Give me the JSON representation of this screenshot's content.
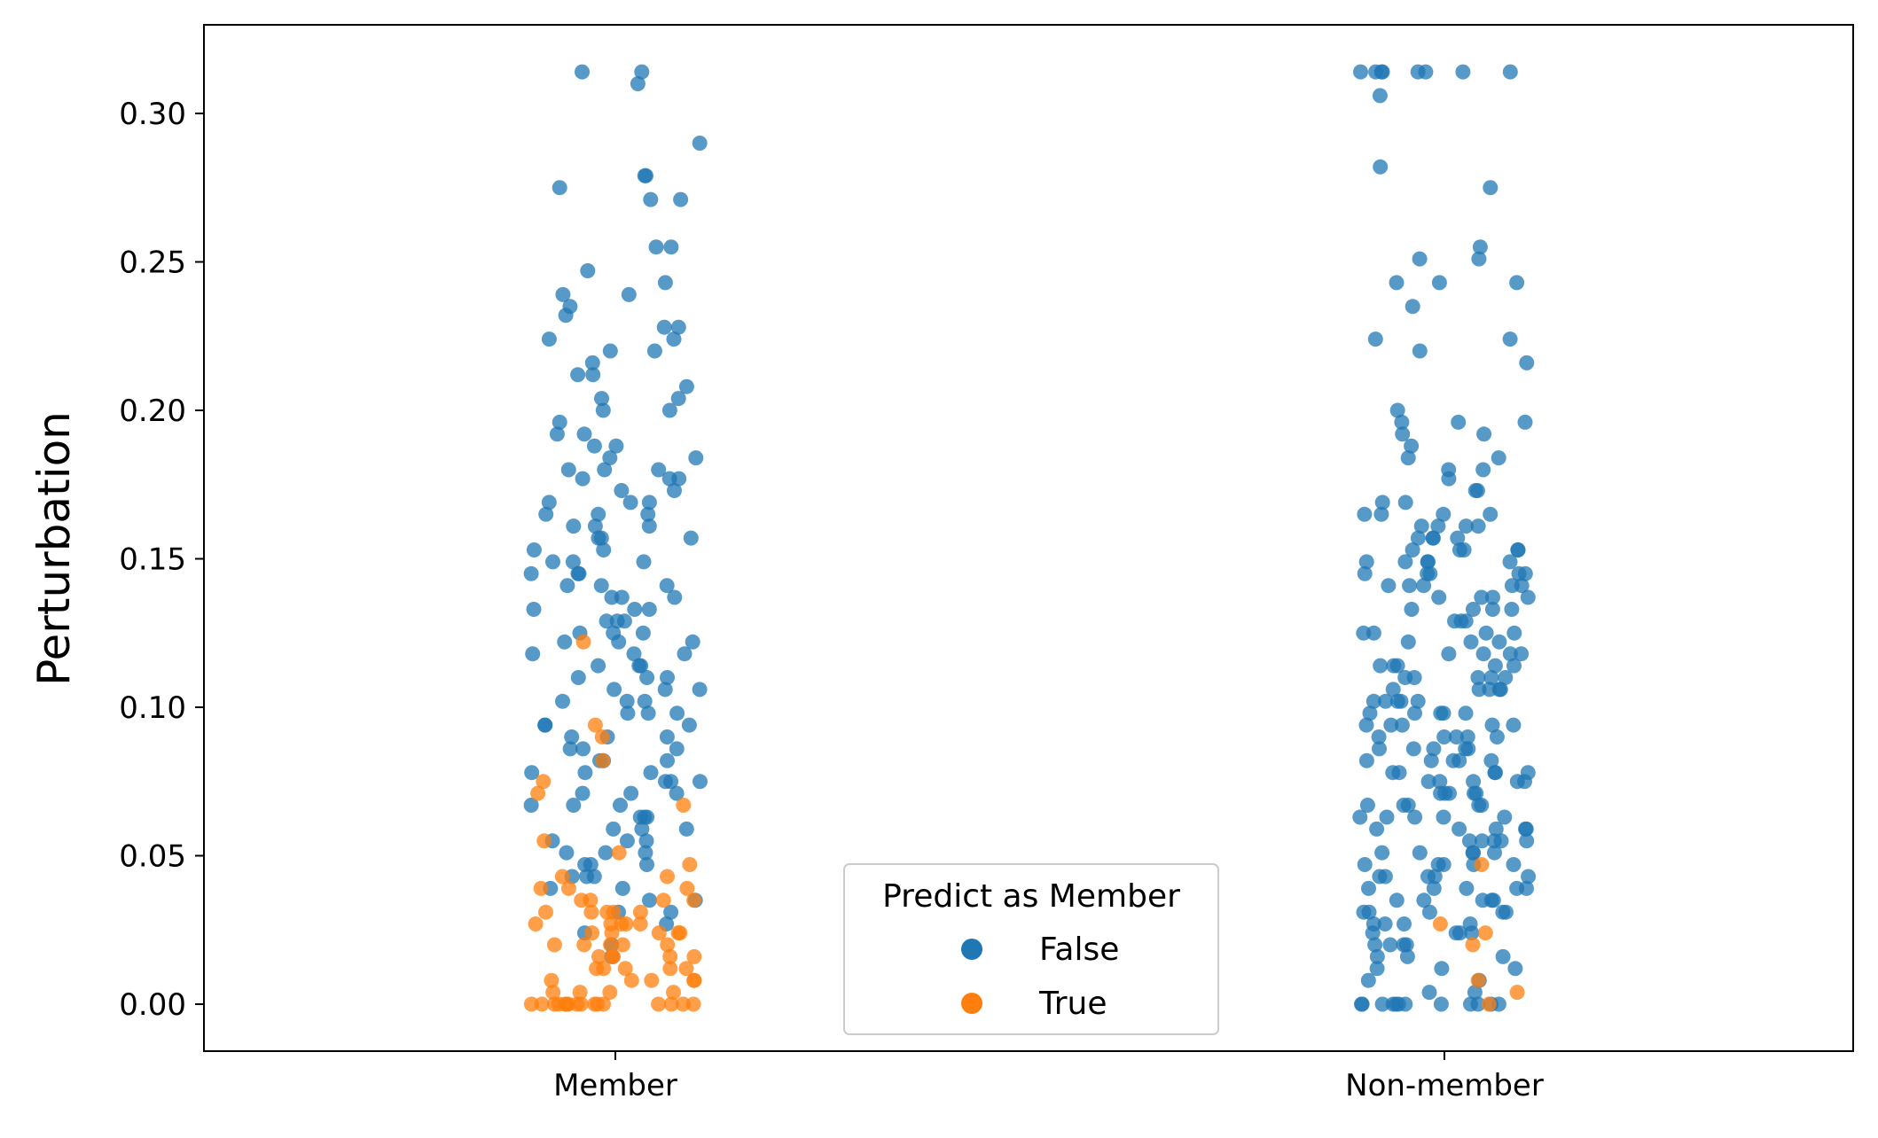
{
  "chart_data": {
    "type": "scatter",
    "subtype": "strip",
    "title": "",
    "xlabel": "",
    "ylabel": "Perturbation",
    "categories": [
      "Member",
      "Non-member"
    ],
    "ylim": [
      -0.016,
      0.33
    ],
    "yticks": [
      0.0,
      0.05,
      0.1,
      0.15,
      0.2,
      0.25,
      0.3
    ],
    "ytick_labels": [
      "0.00",
      "0.05",
      "0.10",
      "0.15",
      "0.20",
      "0.25",
      "0.30"
    ],
    "grid": false,
    "legend": {
      "title": "Predict as Member",
      "placement": "lower-center",
      "entries": [
        {
          "label": "False",
          "color": "#1f77b4"
        },
        {
          "label": "True",
          "color": "#ff7f0e"
        }
      ]
    },
    "series": [
      {
        "name": "False",
        "color": "#1f77b4",
        "points": {
          "Member": [
            0.314,
            0.314,
            0.31,
            0.29,
            0.279,
            0.279,
            0.275,
            0.271,
            0.271,
            0.255,
            0.255,
            0.247,
            0.243,
            0.239,
            0.239,
            0.235,
            0.232,
            0.228,
            0.228,
            0.224,
            0.224,
            0.22,
            0.22,
            0.216,
            0.212,
            0.212,
            0.208,
            0.204,
            0.204,
            0.2,
            0.2,
            0.196,
            0.192,
            0.192,
            0.188,
            0.188,
            0.184,
            0.184,
            0.18,
            0.18,
            0.18,
            0.177,
            0.177,
            0.177,
            0.173,
            0.173,
            0.169,
            0.169,
            0.169,
            0.165,
            0.165,
            0.165,
            0.161,
            0.161,
            0.161,
            0.157,
            0.157,
            0.157,
            0.153,
            0.153,
            0.149,
            0.149,
            0.149,
            0.145,
            0.145,
            0.145,
            0.141,
            0.141,
            0.141,
            0.137,
            0.137,
            0.137,
            0.133,
            0.133,
            0.133,
            0.129,
            0.129,
            0.129,
            0.125,
            0.125,
            0.125,
            0.122,
            0.122,
            0.122,
            0.118,
            0.118,
            0.118,
            0.114,
            0.114,
            0.114,
            0.11,
            0.11,
            0.11,
            0.106,
            0.106,
            0.106,
            0.102,
            0.102,
            0.102,
            0.098,
            0.098,
            0.098,
            0.094,
            0.094,
            0.094,
            0.09,
            0.09,
            0.09,
            0.086,
            0.086,
            0.086,
            0.082,
            0.082,
            0.082,
            0.078,
            0.078,
            0.078,
            0.075,
            0.075,
            0.075,
            0.071,
            0.071,
            0.071,
            0.067,
            0.067,
            0.067,
            0.063,
            0.063,
            0.063,
            0.059,
            0.059,
            0.059,
            0.055,
            0.055,
            0.055,
            0.051,
            0.051,
            0.051,
            0.047,
            0.047,
            0.047,
            0.043,
            0.043,
            0.043,
            0.039,
            0.039,
            0.035,
            0.035,
            0.031,
            0.031,
            0.027,
            0.024,
            0.02,
            0.016
          ],
          "Non-member": [
            0.314,
            0.314,
            0.314,
            0.314,
            0.314,
            0.314,
            0.314,
            0.314,
            0.306,
            0.282,
            0.275,
            0.255,
            0.251,
            0.251,
            0.243,
            0.243,
            0.243,
            0.235,
            0.224,
            0.224,
            0.22,
            0.216,
            0.2,
            0.196,
            0.196,
            0.196,
            0.192,
            0.192,
            0.188,
            0.184,
            0.184,
            0.18,
            0.18,
            0.177,
            0.173,
            0.173,
            0.169,
            0.169,
            0.165,
            0.165,
            0.165,
            0.165,
            0.161,
            0.161,
            0.161,
            0.161,
            0.157,
            0.157,
            0.157,
            0.157,
            0.153,
            0.153,
            0.153,
            0.153,
            0.153,
            0.149,
            0.149,
            0.149,
            0.149,
            0.149,
            0.145,
            0.145,
            0.145,
            0.145,
            0.145,
            0.141,
            0.141,
            0.141,
            0.141,
            0.141,
            0.137,
            0.137,
            0.137,
            0.137,
            0.133,
            0.133,
            0.133,
            0.133,
            0.129,
            0.129,
            0.129,
            0.125,
            0.125,
            0.125,
            0.125,
            0.122,
            0.122,
            0.122,
            0.118,
            0.118,
            0.118,
            0.118,
            0.114,
            0.114,
            0.114,
            0.114,
            0.114,
            0.11,
            0.11,
            0.11,
            0.11,
            0.11,
            0.106,
            0.106,
            0.106,
            0.106,
            0.106,
            0.102,
            0.102,
            0.102,
            0.102,
            0.102,
            0.098,
            0.098,
            0.098,
            0.098,
            0.098,
            0.094,
            0.094,
            0.094,
            0.094,
            0.094,
            0.09,
            0.09,
            0.09,
            0.09,
            0.09,
            0.086,
            0.086,
            0.086,
            0.086,
            0.086,
            0.082,
            0.082,
            0.082,
            0.082,
            0.082,
            0.078,
            0.078,
            0.078,
            0.078,
            0.078,
            0.075,
            0.075,
            0.075,
            0.075,
            0.075,
            0.071,
            0.071,
            0.071,
            0.071,
            0.071,
            0.067,
            0.067,
            0.067,
            0.067,
            0.067,
            0.063,
            0.063,
            0.063,
            0.063,
            0.063,
            0.059,
            0.059,
            0.059,
            0.059,
            0.059,
            0.055,
            0.055,
            0.055,
            0.055,
            0.055,
            0.051,
            0.051,
            0.051,
            0.051,
            0.051,
            0.047,
            0.047,
            0.047,
            0.047,
            0.047,
            0.043,
            0.043,
            0.043,
            0.043,
            0.043,
            0.039,
            0.039,
            0.039,
            0.039,
            0.039,
            0.035,
            0.035,
            0.035,
            0.035,
            0.035,
            0.031,
            0.031,
            0.031,
            0.031,
            0.031,
            0.027,
            0.027,
            0.027,
            0.027,
            0.024,
            0.024,
            0.024,
            0.024,
            0.02,
            0.02,
            0.02,
            0.02,
            0.016,
            0.016,
            0.016,
            0.012,
            0.012,
            0.012,
            0.008,
            0.008,
            0.004,
            0.004,
            0.0,
            0.0,
            0.0,
            0.0,
            0.0,
            0.0,
            0.0,
            0.0,
            0.0,
            0.0,
            0.0,
            0.0
          ]
        }
      },
      {
        "name": "True",
        "color": "#ff7f0e",
        "points": {
          "Member": [
            0.122,
            0.094,
            0.09,
            0.082,
            0.075,
            0.071,
            0.067,
            0.055,
            0.051,
            0.047,
            0.043,
            0.043,
            0.039,
            0.039,
            0.039,
            0.035,
            0.035,
            0.035,
            0.035,
            0.031,
            0.031,
            0.031,
            0.031,
            0.031,
            0.027,
            0.027,
            0.027,
            0.027,
            0.027,
            0.024,
            0.024,
            0.024,
            0.024,
            0.024,
            0.02,
            0.02,
            0.02,
            0.02,
            0.02,
            0.016,
            0.016,
            0.016,
            0.016,
            0.016,
            0.012,
            0.012,
            0.012,
            0.012,
            0.012,
            0.008,
            0.008,
            0.008,
            0.008,
            0.008,
            0.004,
            0.004,
            0.004,
            0.004,
            0.0,
            0.0,
            0.0,
            0.0,
            0.0,
            0.0,
            0.0,
            0.0,
            0.0,
            0.0,
            0.0,
            0.0,
            0.0,
            0.0,
            0.0,
            0.0
          ],
          "Non-member": [
            0.047,
            0.027,
            0.024,
            0.02,
            0.008,
            0.004,
            0.0
          ]
        }
      }
    ]
  }
}
